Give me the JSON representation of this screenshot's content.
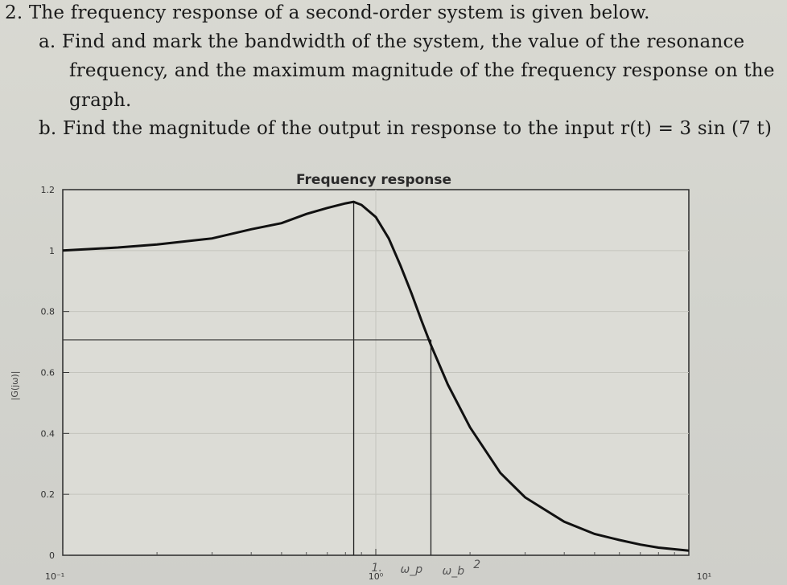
{
  "question": {
    "number_line": "2. The frequency response of a second-order system is given below.",
    "part_a_line1": "a.  Find and mark the bandwidth of the system, the value of the resonance",
    "part_a_line2": "frequency, and the maximum magnitude of the frequency response on the",
    "part_a_line3": "graph.",
    "part_b_line1": "b.  Find the magnitude of the output in response to the input r(t) = 3 sin (7 t)"
  },
  "chart_data": {
    "type": "line",
    "title": "Frequency response",
    "ylabel": "|G(jω)|",
    "xlabel": "",
    "x_scale": "log",
    "xlim": [
      0.1,
      10
    ],
    "ylim": [
      0,
      1.2
    ],
    "y_ticks": [
      "1.2",
      "1",
      "0.8",
      "0.6",
      "0.4",
      "0.2",
      "0"
    ],
    "y_tick_values": [
      1.2,
      1,
      0.8,
      0.6,
      0.4,
      0.2,
      0
    ],
    "x_tick_labels": [
      "10⁻¹",
      "10⁰",
      "10¹"
    ],
    "x_tick_values": [
      0.1,
      1,
      10
    ],
    "grid": true,
    "series": [
      {
        "x": [
          0.1,
          0.15,
          0.2,
          0.3,
          0.4,
          0.5,
          0.6,
          0.7,
          0.8,
          0.85,
          0.9,
          1.0,
          1.1,
          1.2,
          1.3,
          1.4,
          1.5,
          1.7,
          2.0,
          2.5,
          3.0,
          4.0,
          5.0,
          6.0,
          7.0,
          8.0,
          10.0
        ],
        "y": [
          1.0,
          1.01,
          1.02,
          1.04,
          1.07,
          1.09,
          1.12,
          1.14,
          1.155,
          1.16,
          1.15,
          1.11,
          1.04,
          0.95,
          0.86,
          0.77,
          0.69,
          0.56,
          0.42,
          0.27,
          0.19,
          0.11,
          0.07,
          0.05,
          0.035,
          0.025,
          0.015
        ]
      }
    ],
    "annotations": {
      "resonance_peak": {
        "x": 0.85,
        "y": 1.16
      },
      "bandwidth_level": 0.707,
      "bandwidth_x": 1.5,
      "handwritten_marks": [
        "1.",
        "ω_p",
        "ω_b",
        "2"
      ]
    }
  }
}
